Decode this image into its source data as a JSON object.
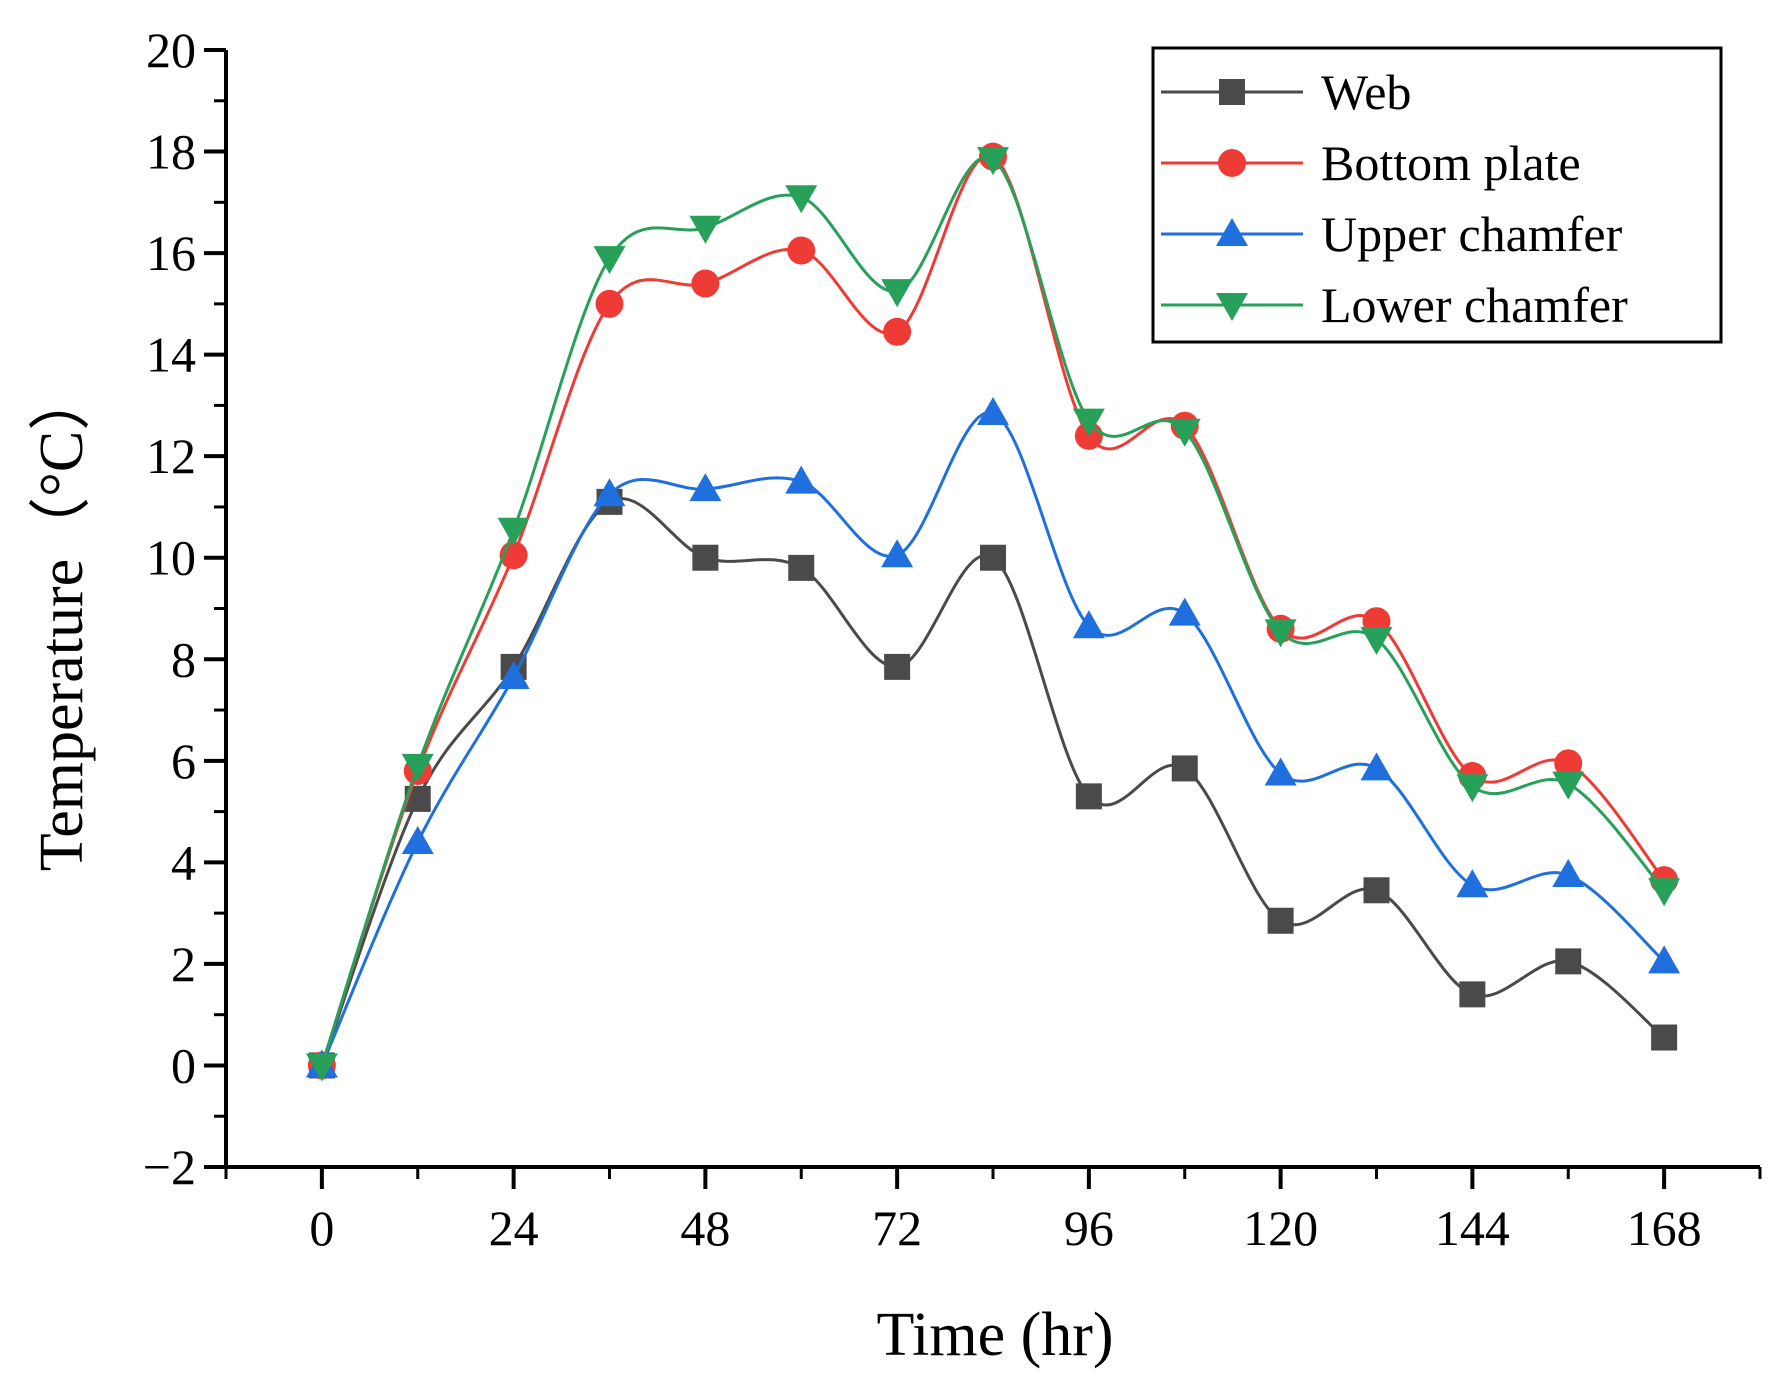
{
  "chart_data": {
    "type": "line",
    "xlabel": "Time (hr)",
    "ylabel": "Temperature（°C）",
    "xlim": [
      -12,
      180
    ],
    "ylim": [
      -2,
      20
    ],
    "x_ticks": [
      "0",
      "24",
      "48",
      "72",
      "96",
      "120",
      "144",
      "168"
    ],
    "y_ticks": [
      "−2",
      "0",
      "2",
      "4",
      "6",
      "8",
      "10",
      "12",
      "14",
      "16",
      "18",
      "20"
    ],
    "x": [
      0,
      12,
      24,
      36,
      48,
      60,
      72,
      84,
      96,
      108,
      120,
      132,
      144,
      156,
      168
    ],
    "grid": false,
    "legend_position": "top-right",
    "series": [
      {
        "name": "Web",
        "color": "#4a4a4a",
        "marker": "square",
        "values": [
          0,
          5.25,
          7.85,
          11.1,
          10.0,
          9.8,
          7.85,
          10.0,
          5.3,
          5.85,
          2.85,
          3.45,
          1.4,
          2.05,
          0.55
        ]
      },
      {
        "name": "Bottom plate",
        "color": "#ef3b36",
        "marker": "circle",
        "values": [
          0,
          5.8,
          10.05,
          15.0,
          15.4,
          16.05,
          14.45,
          17.9,
          12.4,
          12.6,
          8.6,
          8.75,
          5.7,
          5.95,
          3.65
        ]
      },
      {
        "name": "Upper chamfer",
        "color": "#1f6fde",
        "marker": "triangle-up",
        "values": [
          0,
          4.4,
          7.65,
          11.25,
          11.35,
          11.5,
          10.05,
          12.85,
          8.65,
          8.9,
          5.75,
          5.85,
          3.55,
          3.75,
          2.05
        ]
      },
      {
        "name": "Lower chamfer",
        "color": "#27a05a",
        "marker": "triangle-down",
        "values": [
          0,
          5.9,
          10.55,
          15.9,
          16.5,
          17.1,
          15.25,
          17.85,
          12.7,
          12.5,
          8.55,
          8.4,
          5.5,
          5.55,
          3.45
        ]
      }
    ]
  }
}
